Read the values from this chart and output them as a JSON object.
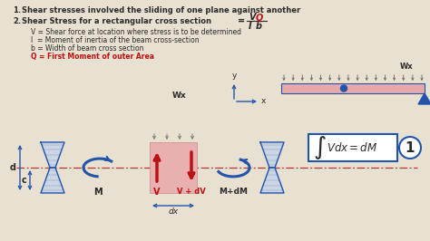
{
  "bg_color": "#e8e0d0",
  "text_color": "#2a2a2a",
  "blue_color": "#2255aa",
  "red_color": "#bb1111",
  "pink_color": "#dda0a0",
  "pink_fill": "#e8b0b0",
  "beam_fill": "#e8a8a8",
  "cross_fill": "#c8d4e8",
  "title1": "Shear stresses involved the sliding of one plane against another",
  "title2": "Shear Stress for a rectangular cross section",
  "line1": "V = Shear force at location where stress is to be determined",
  "line2": "I  = Moment of inertia of the beam cross-section",
  "line3": "b = Width of beam cross section",
  "line4": "Q = First Moment of outer Area",
  "label_M": "M",
  "label_V": "V",
  "label_MdM": "M+dM",
  "label_VdV": "V + dV",
  "label_dx": "dx",
  "label_Wx1": "Wx",
  "label_Wx2": "Wx",
  "label_d": "d",
  "label_c": "c",
  "label_x": "x",
  "label_y": "y",
  "label_1": "1"
}
